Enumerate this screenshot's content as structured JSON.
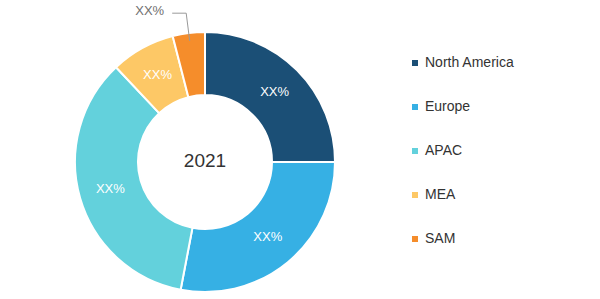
{
  "chart_data": {
    "type": "donut",
    "title": "2021",
    "categories": [
      "North America",
      "Europe",
      "APAC",
      "MEA",
      "SAM"
    ],
    "values": [
      25,
      28,
      35,
      8,
      4
    ],
    "value_labels": [
      "XX%",
      "XX%",
      "XX%",
      "XX%",
      "XX%"
    ],
    "colors": [
      "#1b4f76",
      "#36b0e4",
      "#63d1dc",
      "#fdc866",
      "#f58d2b"
    ],
    "data_labels": true,
    "legend": "right"
  }
}
